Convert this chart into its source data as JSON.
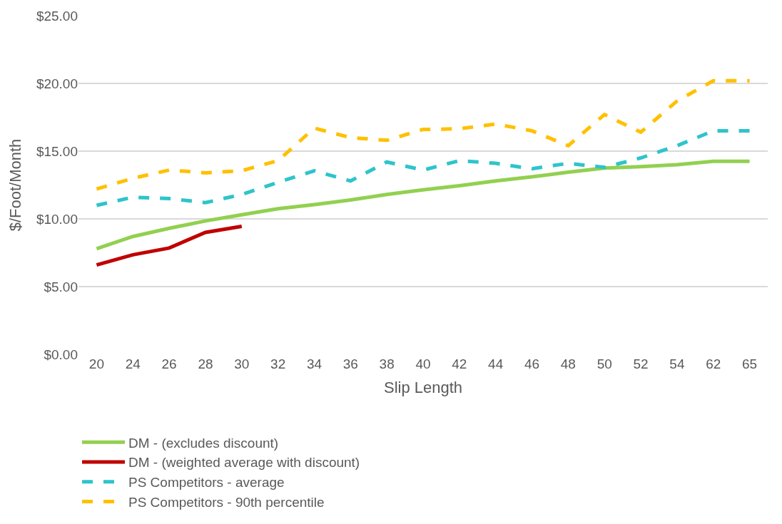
{
  "chart_data": {
    "type": "line",
    "xlabel": "Slip Length",
    "ylabel": "$/Foot/Month",
    "categories": [
      "20",
      "24",
      "26",
      "28",
      "30",
      "32",
      "34",
      "36",
      "38",
      "40",
      "42",
      "44",
      "46",
      "48",
      "50",
      "52",
      "54",
      "62",
      "65"
    ],
    "series": [
      {
        "name": "DM - (excludes discount)",
        "color": "#92d050",
        "line_style": "solid",
        "values": [
          7.8,
          8.7,
          9.3,
          9.85,
          10.3,
          10.75,
          11.05,
          11.4,
          11.8,
          12.15,
          12.45,
          12.8,
          13.1,
          13.45,
          13.75,
          13.85,
          14.0,
          14.25,
          14.25
        ]
      },
      {
        "name": "DM - (weighted average with discount)",
        "color": "#c00000",
        "line_style": "solid",
        "values": [
          6.6,
          7.35,
          7.85,
          9.0,
          9.45,
          null,
          null,
          null,
          null,
          null,
          null,
          null,
          null,
          null,
          null,
          null,
          null,
          null,
          null
        ]
      },
      {
        "name": "PS Competitors - average",
        "color": "#2ec4cc",
        "line_style": "dashed",
        "values": [
          11.0,
          11.6,
          11.5,
          11.2,
          11.8,
          12.7,
          13.55,
          12.8,
          14.2,
          13.6,
          14.3,
          14.1,
          13.7,
          14.1,
          13.8,
          14.5,
          15.4,
          16.5,
          16.5
        ]
      },
      {
        "name": "PS Competitors - 90th percentile",
        "color": "#ffc000",
        "line_style": "dashed",
        "values": [
          12.2,
          13.0,
          13.6,
          13.4,
          13.55,
          14.3,
          16.7,
          16.0,
          15.8,
          16.6,
          16.65,
          17.0,
          16.5,
          15.4,
          17.7,
          16.4,
          18.7,
          20.2,
          20.2
        ]
      }
    ],
    "ylim": [
      0,
      25
    ],
    "yticks": [
      {
        "value": 0,
        "label": "$0.00"
      },
      {
        "value": 5,
        "label": "$5.00"
      },
      {
        "value": 10,
        "label": "$10.00"
      },
      {
        "value": 15,
        "label": "$15.00"
      },
      {
        "value": 20,
        "label": "$20.00"
      },
      {
        "value": 25,
        "label": "$25.00"
      }
    ],
    "grid": "y",
    "legend": "bottom",
    "marker": "none"
  }
}
